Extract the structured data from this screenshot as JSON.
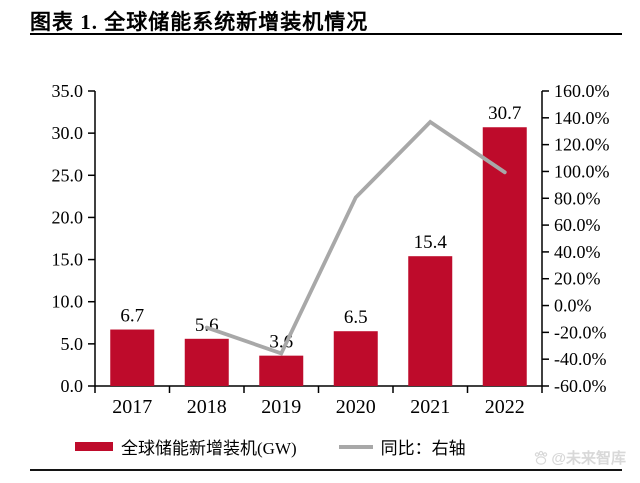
{
  "header": {
    "title": "图表 1. 全球储能系统新增装机情况"
  },
  "footer": {
    "watermark": "@未来智库"
  },
  "colors": {
    "bar": "#be0b2b",
    "line": "#a8a8a8",
    "axis": "#000000",
    "watermark": "#d8d8d8"
  },
  "chart_data": {
    "type": "bar",
    "subtype": "combo-bar-line",
    "categories": [
      "2017",
      "2018",
      "2019",
      "2020",
      "2021",
      "2022"
    ],
    "series": [
      {
        "name": "全球储能新增装机(GW)",
        "type": "bar",
        "axis": "left",
        "values": [
          6.7,
          5.6,
          3.6,
          6.5,
          15.4,
          30.7
        ],
        "labels": [
          "6.7",
          "5.6",
          "3.6",
          "6.5",
          "15.4",
          "30.7"
        ],
        "color": "#be0b2b"
      },
      {
        "name": "同比：右轴",
        "type": "line",
        "axis": "right",
        "values": [
          null,
          -16.4,
          -35.7,
          80.6,
          136.9,
          99.4
        ],
        "color": "#a8a8a8"
      }
    ],
    "left_axis": {
      "min": 0,
      "max": 35,
      "step": 5,
      "tick_labels": [
        "0.0",
        "5.0",
        "10.0",
        "15.0",
        "20.0",
        "25.0",
        "30.0",
        "35.0"
      ]
    },
    "right_axis": {
      "min": -60,
      "max": 160,
      "step": 20,
      "tick_labels": [
        "-60.0%",
        "-40.0%",
        "-20.0%",
        "0.0%",
        "20.0%",
        "40.0%",
        "60.0%",
        "80.0%",
        "100.0%",
        "120.0%",
        "140.0%",
        "160.0%"
      ]
    },
    "legend_position": "bottom",
    "grid": false
  }
}
